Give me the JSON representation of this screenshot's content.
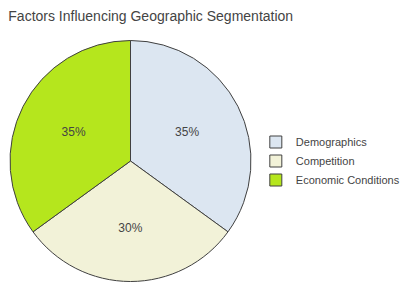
{
  "chart_data": {
    "type": "pie",
    "title": "Factors Influencing Geographic Segmentation",
    "categories": [
      "Demographics",
      "Competition",
      "Economic Conditions"
    ],
    "values": [
      35,
      30,
      35
    ],
    "value_labels": [
      "35%",
      "30%",
      "35%"
    ],
    "colors": [
      "#dce6f1",
      "#f2f2d8",
      "#b5e61d"
    ],
    "data_labels": true,
    "legend": "right"
  }
}
